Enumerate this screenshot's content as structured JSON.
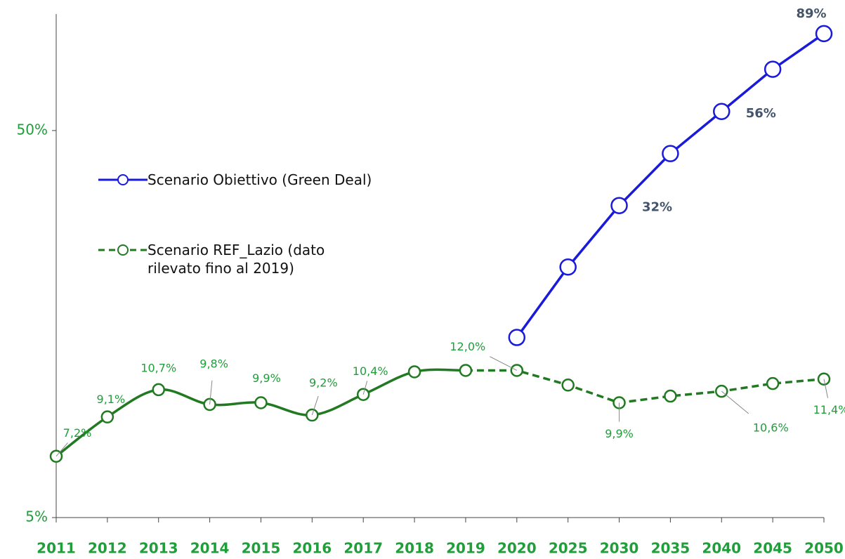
{
  "chart_data": {
    "type": "line",
    "log_scale": true,
    "categories": [
      "2011",
      "2012",
      "2013",
      "2014",
      "2015",
      "2016",
      "2017",
      "2018",
      "2019",
      "2020",
      "2025",
      "2030",
      "2035",
      "2040",
      "2045",
      "2050"
    ],
    "ylim": [
      5,
      100
    ],
    "yticks": [
      {
        "value": 5,
        "label": "5%"
      },
      {
        "value": 50,
        "label": "50%"
      }
    ],
    "legend": "left",
    "series": [
      {
        "name": "Scenario Obiettivo (Green Deal)",
        "color": "#1a1adb",
        "values": [
          null,
          null,
          null,
          null,
          null,
          null,
          null,
          null,
          null,
          14.6,
          22.2,
          32,
          43.6,
          56,
          72,
          89
        ],
        "value_labels": [
          null,
          null,
          null,
          null,
          null,
          null,
          null,
          null,
          null,
          null,
          null,
          "32%",
          null,
          "56%",
          null,
          "89%"
        ]
      },
      {
        "name": "Scenario REF_Lazio (dato rilevato fino al 2019)",
        "color": "#217a21",
        "dashed_after": "2019",
        "values": [
          7.2,
          9.1,
          10.7,
          9.8,
          9.9,
          9.2,
          10.4,
          11.9,
          12.0,
          12.0,
          11.0,
          9.9,
          10.3,
          10.6,
          11.1,
          11.4
        ],
        "value_labels": [
          "7,2%",
          "9,1%",
          "10,7%",
          "9,8%",
          "9,9%",
          "9,2%",
          "10,4%",
          null,
          null,
          "12,0%",
          null,
          "9,9%",
          null,
          "10,6%",
          null,
          "11,4%"
        ]
      }
    ]
  }
}
